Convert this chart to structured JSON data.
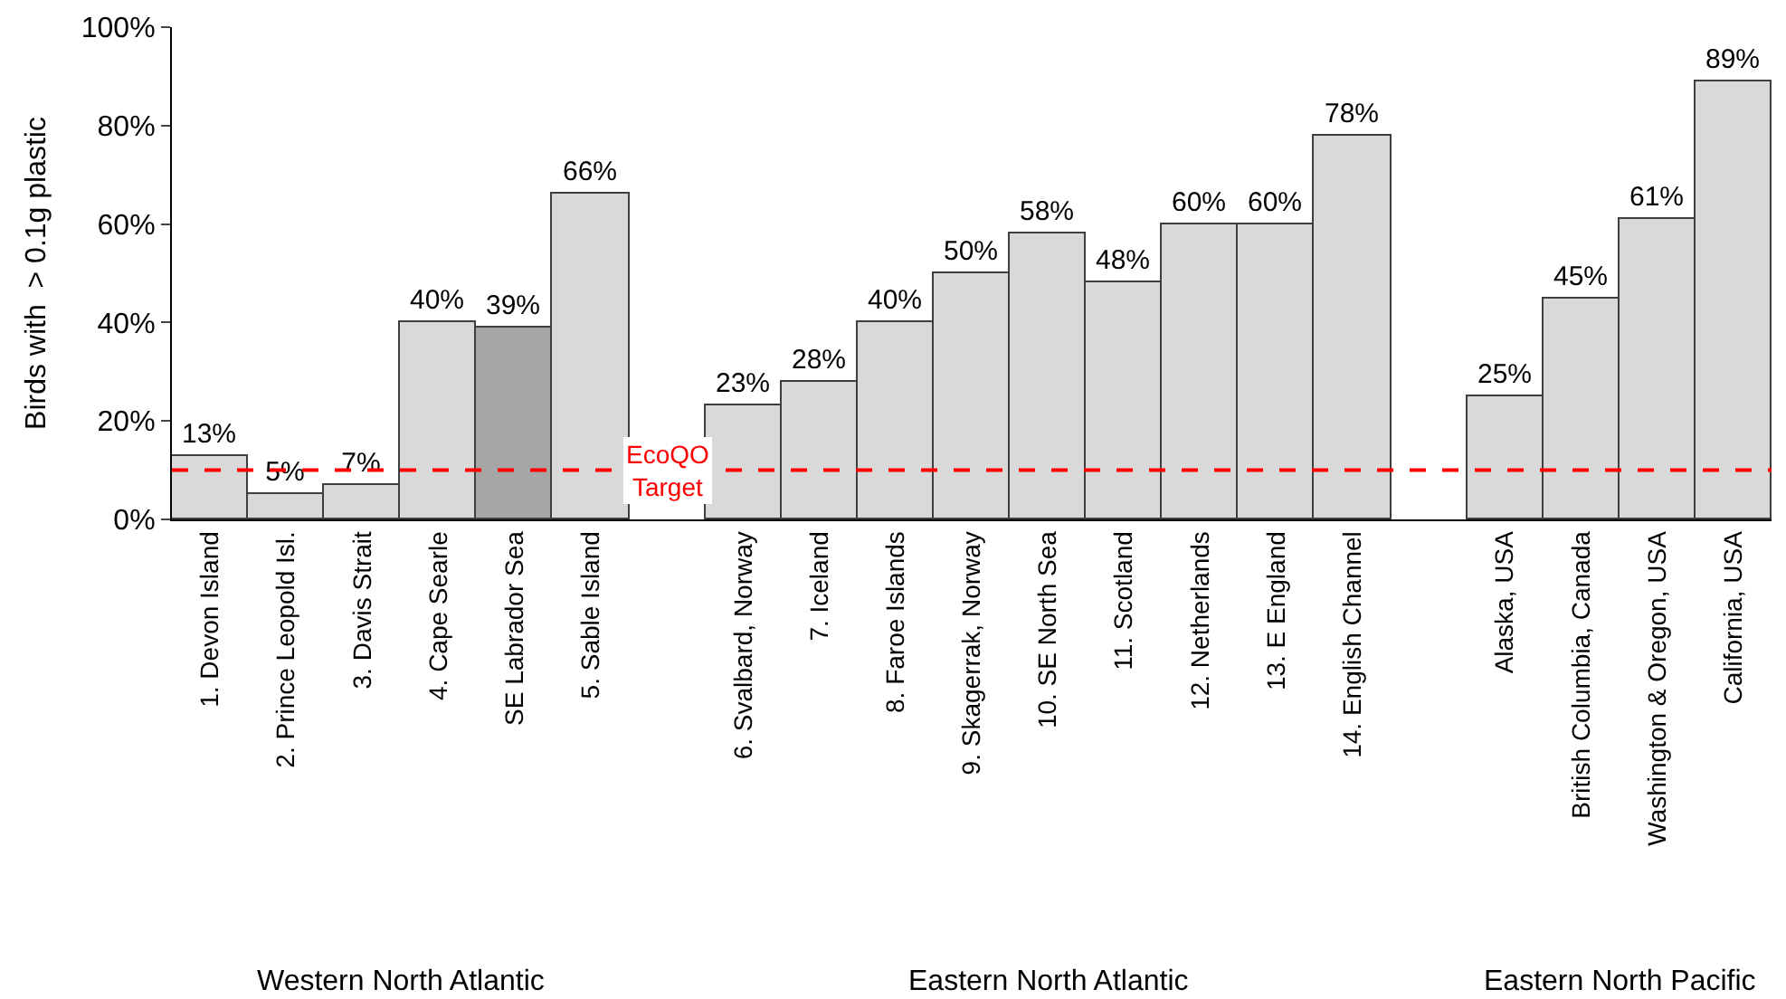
{
  "chart_data": {
    "type": "bar",
    "ylabel": "Birds with  > 0.1g plastic",
    "categories": [
      "1. Devon Island",
      "2. Prince Leopold Isl.",
      "3. Davis Strait",
      "4. Cape Searle",
      "SE Labrador Sea",
      "5. Sable Island",
      null,
      "6. Svalbard, Norway",
      "7. Iceland",
      "8. Faroe Islands",
      "9. Skagerrak, Norway",
      "10. SE North Sea",
      "11. Scotland",
      "12. Netherlands",
      "13. E England",
      "14. English Channel",
      null,
      "Alaska, USA",
      "British Columbia, Canada",
      "Washington & Oregon, USA",
      "California, USA"
    ],
    "values": [
      13,
      5,
      7,
      40,
      39,
      66,
      null,
      23,
      28,
      40,
      50,
      58,
      48,
      60,
      60,
      78,
      null,
      25,
      45,
      61,
      89
    ],
    "value_labels": [
      "13%",
      "5%",
      "7%",
      "40%",
      "39%",
      "66%",
      null,
      "23%",
      "28%",
      "40%",
      "50%",
      "58%",
      "48%",
      "60%",
      "60%",
      "78%",
      null,
      "25%",
      "45%",
      "61%",
      "89%"
    ],
    "colors": [
      "#d9d9d9",
      "#d9d9d9",
      "#d9d9d9",
      "#d9d9d9",
      "#a6a6a6",
      "#d9d9d9",
      "#d9d9d9",
      "#d9d9d9",
      "#d9d9d9",
      "#d9d9d9",
      "#d9d9d9",
      "#d9d9d9",
      "#d9d9d9",
      "#d9d9d9",
      "#d9d9d9",
      "#d9d9d9",
      "#d9d9d9",
      "#d9d9d9",
      "#d9d9d9",
      "#d9d9d9",
      "#d9d9d9"
    ],
    "ylim": [
      0,
      100
    ],
    "yticks": [
      {
        "value": 0,
        "label": "0%"
      },
      {
        "value": 20,
        "label": "20%"
      },
      {
        "value": 40,
        "label": "40%"
      },
      {
        "value": 60,
        "label": "60%"
      },
      {
        "value": 80,
        "label": "80%"
      },
      {
        "value": 100,
        "label": "100%"
      }
    ],
    "ref_lines": [
      {
        "axis": "y",
        "value": 10,
        "label": "EcoQO Target",
        "color": "#ff0000",
        "line_style": "dashed"
      }
    ],
    "annotations": [
      "Western North Atlantic",
      "Eastern North Atlantic",
      "Eastern North Pacific"
    ],
    "grid": false,
    "legend": false
  }
}
